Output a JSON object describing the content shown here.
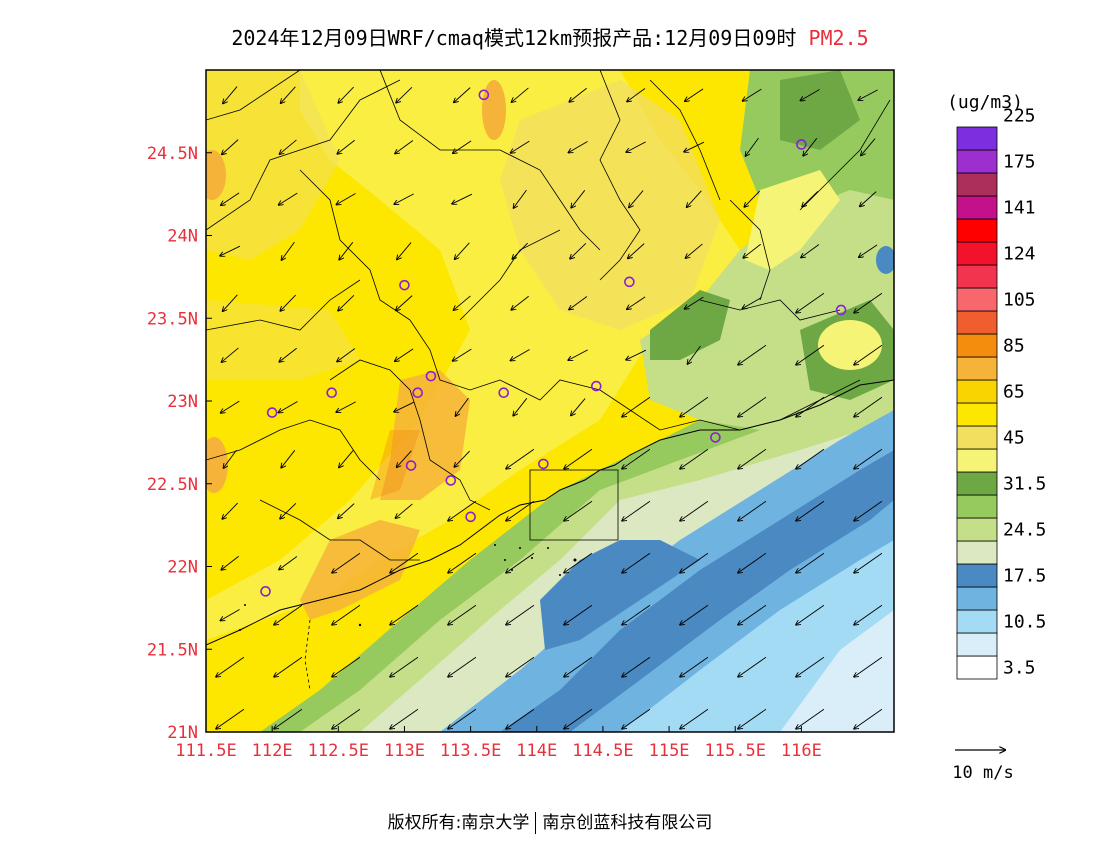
{
  "title": {
    "main": "2024年12月09日WRF/cmaq模式12km预报产品:12月09日09时",
    "pollutant": "PM2.5",
    "pollutant_color": "#e8303b"
  },
  "map": {
    "x_ticks": [
      "111.5E",
      "112E",
      "112.5E",
      "113E",
      "113.5E",
      "114E",
      "114.5E",
      "115E",
      "115.5E",
      "116E"
    ],
    "y_ticks": [
      "24.5N",
      "24N",
      "23.5N",
      "23N",
      "22.5N",
      "22N",
      "21.5N",
      "21N"
    ],
    "tick_color": "#e8303b",
    "lon_range": [
      111.5,
      116.7
    ],
    "lat_range": [
      21.0,
      25.0
    ],
    "stations": [
      [
        113.6,
        24.85
      ],
      [
        116.0,
        24.55
      ],
      [
        113.0,
        23.7
      ],
      [
        114.7,
        23.72
      ],
      [
        116.3,
        23.55
      ],
      [
        112.0,
        22.93
      ],
      [
        112.45,
        23.05
      ],
      [
        113.2,
        23.15
      ],
      [
        113.1,
        23.05
      ],
      [
        113.75,
        23.05
      ],
      [
        114.45,
        23.09
      ],
      [
        115.35,
        22.78
      ],
      [
        113.05,
        22.61
      ],
      [
        113.35,
        22.52
      ],
      [
        114.05,
        22.62
      ],
      [
        113.5,
        22.3
      ],
      [
        111.95,
        21.85
      ]
    ],
    "wind_vectors_unit": "10 m/s"
  },
  "legend": {
    "unit": "(ug/m3)",
    "colors": [
      "#ffffff",
      "#d9eef9",
      "#a4dbf4",
      "#6fb3e0",
      "#4a89c2",
      "#dce8c2",
      "#c4df88",
      "#97ca5e",
      "#6da844",
      "#f6f477",
      "#f3df5e",
      "#fde700",
      "#fad400",
      "#f6b33a",
      "#f48c0e",
      "#ef5e2f",
      "#f8676c",
      "#f3344f",
      "#f2122c",
      "#ff0000",
      "#c4108a",
      "#ac2e5a",
      "#9c2fce",
      "#7d2fe0"
    ],
    "labels": [
      "3.5",
      "10.5",
      "17.5",
      "24.5",
      "31.5",
      "45",
      "65",
      "85",
      "105",
      "124",
      "141",
      "175",
      "225"
    ]
  },
  "footer": {
    "left": "版权所有:南京大学",
    "right": "南京创蓝科技有限公司"
  }
}
